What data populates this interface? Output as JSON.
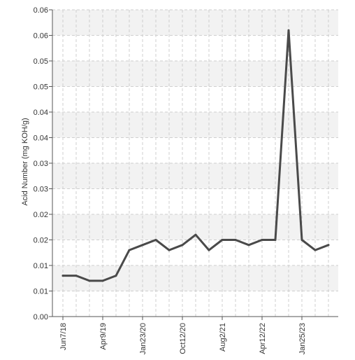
{
  "chart_data": {
    "type": "line",
    "title": "",
    "xlabel": "",
    "ylabel": "Acid Number (mg KOH/g)",
    "grid": true,
    "y_tick_labels": [
      "0.00",
      "0.01",
      "0.01",
      "0.02",
      "0.02",
      "0.03",
      "0.03",
      "0.04",
      "0.04",
      "0.05",
      "0.05",
      "0.06",
      "0.06"
    ],
    "ylim": [
      0,
      0.06
    ],
    "x_tick_labels": [
      "Jun7/18",
      "Apr9/19",
      "Jan23/20",
      "Oct12/20",
      "Aug2/21",
      "Apr12/22",
      "Jan25/23"
    ],
    "x_tick_at_point": [
      0,
      3,
      6,
      9,
      12,
      15,
      18
    ],
    "series": [
      {
        "color": "#4a4a4a",
        "values": [
          0.008,
          0.008,
          0.007,
          0.007,
          0.008,
          0.013,
          0.014,
          0.015,
          0.013,
          0.014,
          0.016,
          0.013,
          0.015,
          0.015,
          0.014,
          0.015,
          0.015,
          0.056,
          0.015,
          0.013,
          0.014
        ]
      }
    ],
    "band_color": "#f2f2f2",
    "grid_color": "#cfcfcf"
  }
}
